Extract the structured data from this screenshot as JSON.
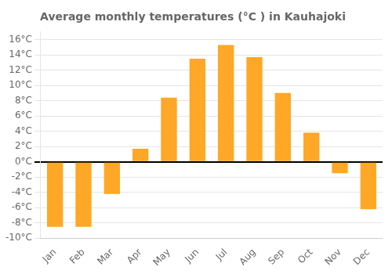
{
  "chart_data": {
    "type": "bar",
    "title": "Average monthly temperatures (°C ) in Kauhajoki",
    "categories": [
      "Jan",
      "Feb",
      "Mar",
      "Apr",
      "May",
      "Jun",
      "Jul",
      "Aug",
      "Sep",
      "Oct",
      "Nov",
      "Dec"
    ],
    "values": [
      -8.5,
      -8.5,
      -4.2,
      1.7,
      8.4,
      13.5,
      15.3,
      13.7,
      9.0,
      3.8,
      -1.5,
      -6.2
    ],
    "color": "#FFA726",
    "ylim": [
      -10,
      17
    ],
    "yticks": [
      {
        "value": -10,
        "label": "-10°C"
      },
      {
        "value": -8,
        "label": "-8°C"
      },
      {
        "value": -6,
        "label": "-6°C"
      },
      {
        "value": -4,
        "label": "-4°C"
      },
      {
        "value": -2,
        "label": "-2°C"
      },
      {
        "value": 0,
        "label": "0°C"
      },
      {
        "value": 2,
        "label": "2°C"
      },
      {
        "value": 4,
        "label": "4°C"
      },
      {
        "value": 6,
        "label": "6°C"
      },
      {
        "value": 8,
        "label": "8°C"
      },
      {
        "value": 10,
        "label": "10°C"
      },
      {
        "value": 12,
        "label": "12°C"
      },
      {
        "value": 14,
        "label": "14°C"
      },
      {
        "value": 16,
        "label": "16°C"
      }
    ],
    "grid": true
  }
}
